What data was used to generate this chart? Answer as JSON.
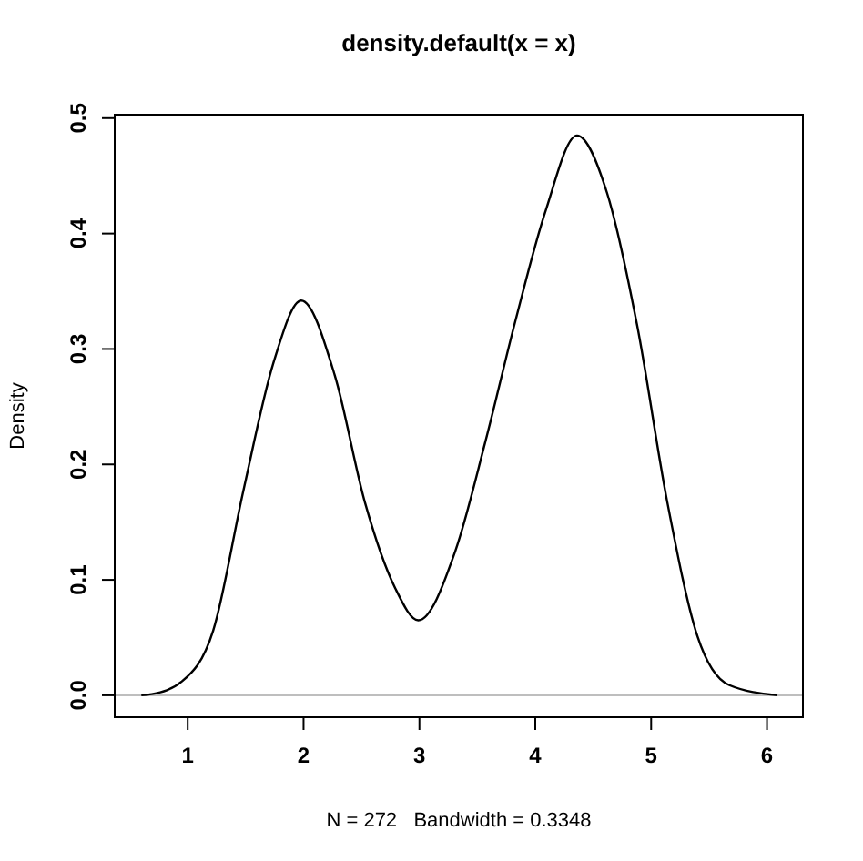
{
  "chart_data": {
    "type": "line",
    "title": "density.default(x = x)",
    "xlabel": "N = 272   Bandwidth = 0.3348",
    "ylabel": "Density",
    "x": [
      0.6,
      0.69,
      0.95,
      1.22,
      1.48,
      1.74,
      1.98,
      2.27,
      2.53,
      2.79,
      2.99,
      3.31,
      3.57,
      3.83,
      4.09,
      4.36,
      4.62,
      4.88,
      5.14,
      5.4,
      5.67,
      6.09
    ],
    "series": [
      {
        "color": "#000000",
        "values": [
          0.0,
          0.001,
          0.012,
          0.056,
          0.177,
          0.288,
          0.342,
          0.277,
          0.167,
          0.093,
          0.065,
          0.125,
          0.22,
          0.325,
          0.42,
          0.485,
          0.435,
          0.32,
          0.167,
          0.051,
          0.009,
          0.0
        ]
      }
    ],
    "xlim": [
      0.37,
      6.31
    ],
    "ylim": [
      -0.019,
      0.503
    ],
    "xticks": [
      1,
      2,
      3,
      4,
      5,
      6
    ],
    "yticks": [
      {
        "value": 0,
        "label": "0.0"
      },
      {
        "value": 0.1,
        "label": "0.1"
      },
      {
        "value": 0.2,
        "label": "0.2"
      },
      {
        "value": 0.3,
        "label": "0.3"
      },
      {
        "value": 0.4,
        "label": "0.4"
      },
      {
        "value": 0.5,
        "label": "0.5"
      }
    ],
    "ref_lines": [
      {
        "axis": "y",
        "value": 0,
        "color": "#bebebe"
      }
    ],
    "grid": false,
    "line_style": "solid"
  }
}
